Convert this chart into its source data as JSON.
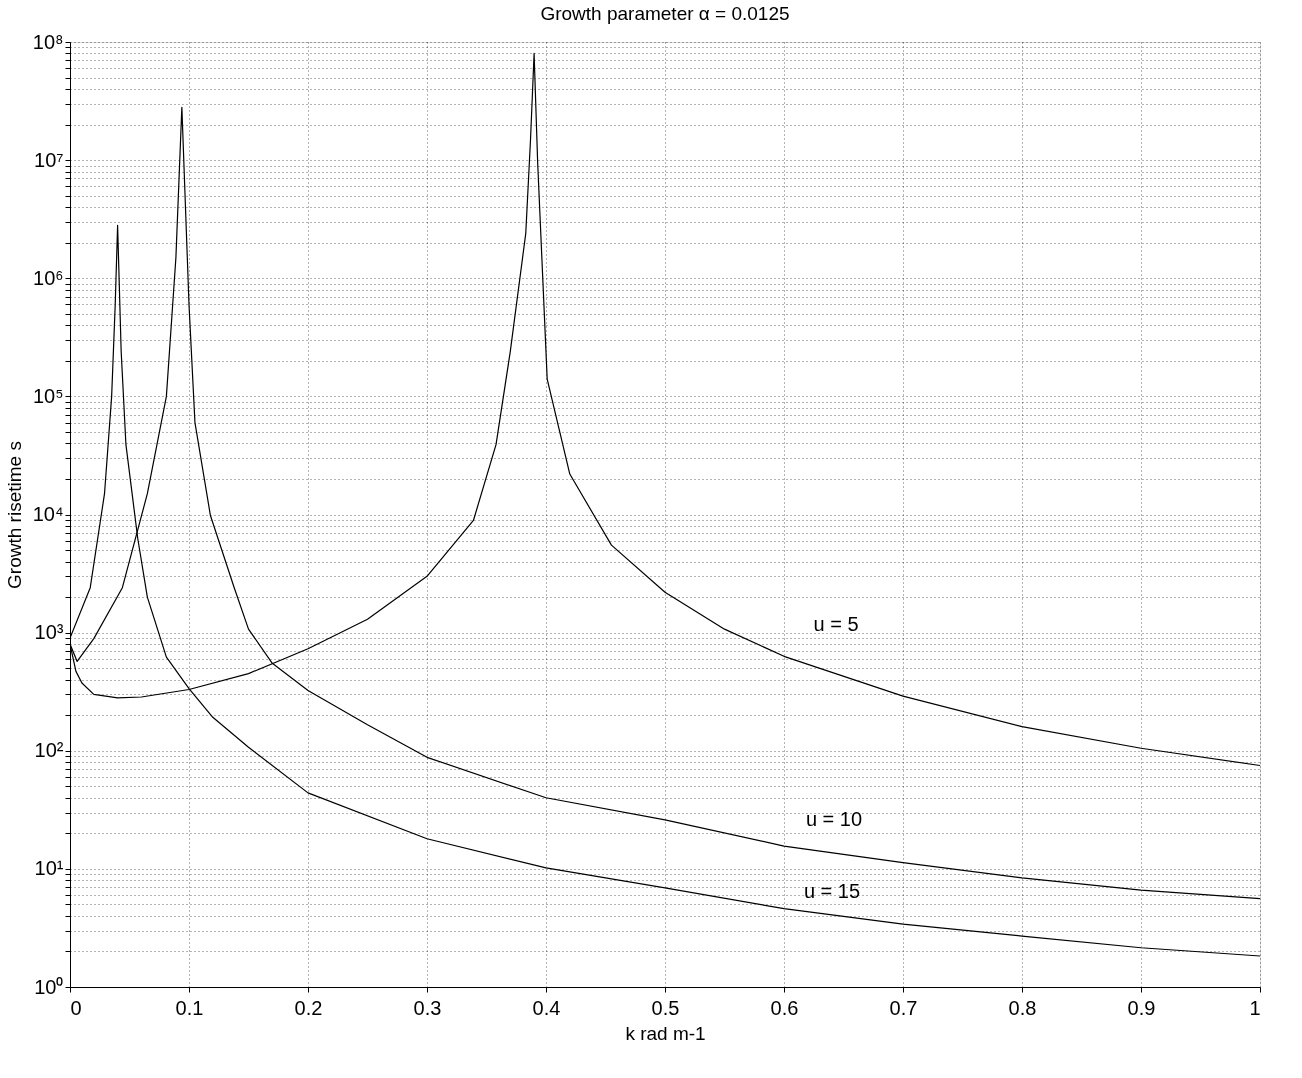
{
  "chart_data": {
    "type": "line",
    "title": "Growth parameter α = 0.0125",
    "xlabel": "k rad m-1",
    "ylabel": "Growth risetime s",
    "log": "y",
    "grid": true,
    "legend": false,
    "marker": "none",
    "line_style": "solid",
    "xlim": [
      0,
      1
    ],
    "xticks": [
      0,
      0.1,
      0.2,
      0.3,
      0.4,
      0.5,
      0.6,
      0.7,
      0.8,
      0.9,
      1
    ],
    "ylim": [
      1,
      100000000
    ],
    "yticks": [
      {
        "value": 1,
        "label": "10⁰"
      },
      {
        "value": 2,
        "label": null
      },
      {
        "value": 3,
        "label": null
      },
      {
        "value": 4,
        "label": null
      },
      {
        "value": 5,
        "label": null
      },
      {
        "value": 6,
        "label": null
      },
      {
        "value": 7,
        "label": null
      },
      {
        "value": 8,
        "label": null
      },
      {
        "value": 9,
        "label": null
      },
      {
        "value": 10,
        "label": "10¹"
      },
      {
        "value": 20,
        "label": null
      },
      {
        "value": 30,
        "label": null
      },
      {
        "value": 40,
        "label": null
      },
      {
        "value": 50,
        "label": null
      },
      {
        "value": 60,
        "label": null
      },
      {
        "value": 70,
        "label": null
      },
      {
        "value": 80,
        "label": null
      },
      {
        "value": 90,
        "label": null
      },
      {
        "value": 100,
        "label": "10²"
      },
      {
        "value": 200,
        "label": null
      },
      {
        "value": 300,
        "label": null
      },
      {
        "value": 400,
        "label": null
      },
      {
        "value": 500,
        "label": null
      },
      {
        "value": 600,
        "label": null
      },
      {
        "value": 700,
        "label": null
      },
      {
        "value": 800,
        "label": null
      },
      {
        "value": 900,
        "label": null
      },
      {
        "value": 1000,
        "label": "10³"
      },
      {
        "value": 2000,
        "label": null
      },
      {
        "value": 3000,
        "label": null
      },
      {
        "value": 4000,
        "label": null
      },
      {
        "value": 5000,
        "label": null
      },
      {
        "value": 6000,
        "label": null
      },
      {
        "value": 7000,
        "label": null
      },
      {
        "value": 8000,
        "label": null
      },
      {
        "value": 9000,
        "label": null
      },
      {
        "value": 10000,
        "label": "10⁴"
      },
      {
        "value": 20000,
        "label": null
      },
      {
        "value": 30000,
        "label": null
      },
      {
        "value": 40000,
        "label": null
      },
      {
        "value": 50000,
        "label": null
      },
      {
        "value": 60000,
        "label": null
      },
      {
        "value": 70000,
        "label": null
      },
      {
        "value": 80000,
        "label": null
      },
      {
        "value": 90000,
        "label": null
      },
      {
        "value": 100000,
        "label": "10⁵"
      },
      {
        "value": 200000,
        "label": null
      },
      {
        "value": 300000,
        "label": null
      },
      {
        "value": 400000,
        "label": null
      },
      {
        "value": 500000,
        "label": null
      },
      {
        "value": 600000,
        "label": null
      },
      {
        "value": 700000,
        "label": null
      },
      {
        "value": 800000,
        "label": null
      },
      {
        "value": 900000,
        "label": null
      },
      {
        "value": 1000000,
        "label": "10⁶"
      },
      {
        "value": 2000000,
        "label": null
      },
      {
        "value": 3000000,
        "label": null
      },
      {
        "value": 4000000,
        "label": null
      },
      {
        "value": 5000000,
        "label": null
      },
      {
        "value": 6000000,
        "label": null
      },
      {
        "value": 7000000,
        "label": null
      },
      {
        "value": 8000000,
        "label": null
      },
      {
        "value": 9000000,
        "label": null
      },
      {
        "value": 10000000,
        "label": "10⁷"
      },
      {
        "value": 20000000,
        "label": null
      },
      {
        "value": 30000000,
        "label": null
      },
      {
        "value": 40000000,
        "label": null
      },
      {
        "value": 50000000,
        "label": null
      },
      {
        "value": 60000000,
        "label": null
      },
      {
        "value": 70000000,
        "label": null
      },
      {
        "value": 80000000,
        "label": null
      },
      {
        "value": 90000000,
        "label": null
      },
      {
        "value": 100000000,
        "label": "10⁸"
      }
    ],
    "series": [
      {
        "name": "u = 5",
        "color": "#000000",
        "x": [
          0,
          0.005,
          0.01,
          0.02,
          0.04,
          0.06,
          0.1,
          0.15,
          0.2,
          0.25,
          0.3,
          0.339,
          0.358,
          0.37,
          0.383,
          0.387,
          0.39,
          0.393,
          0.401,
          0.42,
          0.455,
          0.5,
          0.55,
          0.6,
          0.7,
          0.8,
          0.9,
          1.0
        ],
        "values": [
          800,
          470,
          375,
          300,
          280,
          285,
          330,
          450,
          730,
          1300,
          3000,
          8900,
          39000,
          240000,
          2400000,
          15000000,
          80000000,
          9500000,
          140000,
          22000,
          5500,
          2200,
          1070,
          630,
          290,
          160,
          105,
          75
        ]
      },
      {
        "name": "u = 10",
        "color": "#000000",
        "x": [
          0,
          0.006,
          0.02,
          0.044,
          0.065,
          0.081,
          0.089,
          0.094,
          0.1,
          0.105,
          0.118,
          0.138,
          0.15,
          0.17,
          0.2,
          0.25,
          0.3,
          0.4,
          0.5,
          0.6,
          0.7,
          0.8,
          0.9,
          1.0
        ],
        "values": [
          800,
          570,
          890,
          2400,
          15000,
          100000,
          1500000,
          28000000,
          600000,
          60000,
          9800,
          2400,
          1070,
          550,
          324,
          166,
          88,
          40,
          26,
          15.6,
          11.3,
          8.4,
          6.6,
          5.6
        ]
      },
      {
        "name": "u = 15",
        "color": "#000000",
        "x": [
          0,
          0.017,
          0.029,
          0.035,
          0.038,
          0.04,
          0.043,
          0.047,
          0.057,
          0.065,
          0.081,
          0.1,
          0.12,
          0.15,
          0.2,
          0.3,
          0.4,
          0.5,
          0.6,
          0.7,
          0.8,
          0.9,
          1.0
        ],
        "values": [
          900,
          2400,
          15000,
          100000,
          600000,
          2800000,
          240000,
          39000,
          6200,
          2000,
          620,
          336,
          192,
          107,
          44,
          18,
          10.2,
          6.9,
          4.6,
          3.4,
          2.7,
          2.15,
          1.83
        ]
      }
    ]
  }
}
